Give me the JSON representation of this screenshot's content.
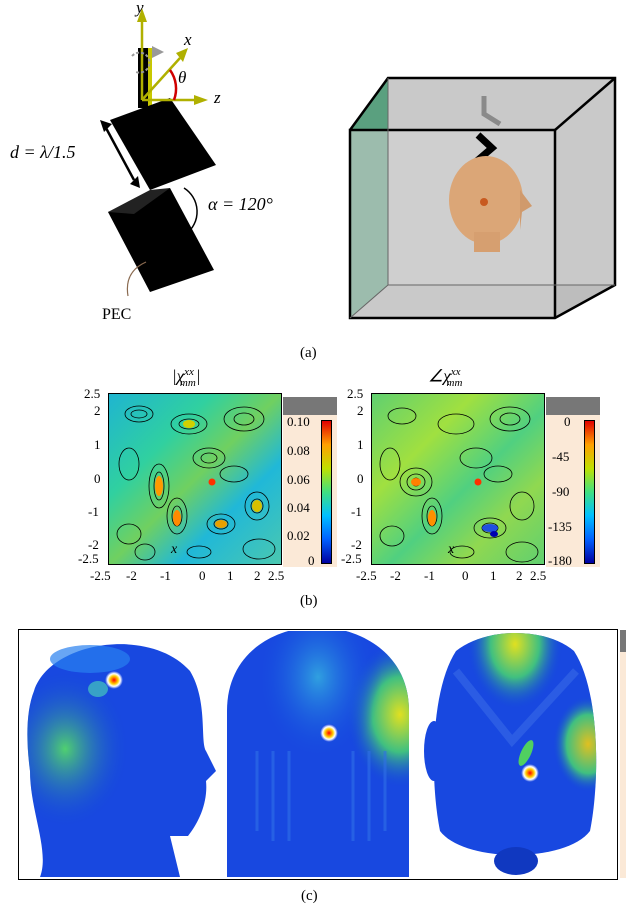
{
  "figure_a": {
    "axis_y": "y",
    "axis_x": "x",
    "axis_z": "z",
    "theta": "θ",
    "distance_label": "d = λ/1.5",
    "angle_label": "α = 120°",
    "material_label": "PEC",
    "caption": "(a)"
  },
  "figure_b": {
    "caption": "(b)",
    "left_title": "|χ",
    "left_title_sup": "xx",
    "left_title_sub": "mm",
    "left_title_end": "|",
    "right_title": "∠χ",
    "right_title_sup": "xx",
    "right_title_sub": "mm",
    "y_ticks": [
      "2.5",
      "2",
      "1",
      "0",
      "-1",
      "-2",
      "-2.5"
    ],
    "x_ticks": [
      "-2.5",
      "-2",
      "-1",
      "0",
      "1",
      "2",
      "2.5"
    ],
    "left_cbar_ticks": [
      "0.10",
      "0.08",
      "0.06",
      "0.04",
      "0.02",
      "0"
    ],
    "right_cbar_ticks": [
      "0",
      "-45",
      "-90",
      "-135",
      "-180"
    ],
    "inplot_label": "x"
  },
  "figure_c": {
    "caption": "(c)"
  },
  "colors": {
    "green_wall": "#3d8f68",
    "jet_low": "#0000b0",
    "jet_high": "#c00000",
    "cbar_bg": "#fbe9d7",
    "cbar_top": "#777777"
  }
}
